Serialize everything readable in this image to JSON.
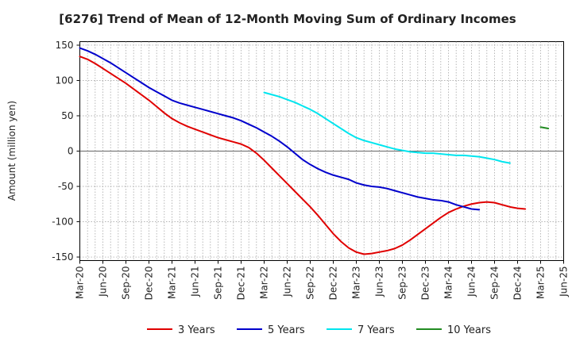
{
  "chart_data": {
    "type": "line",
    "title": "[6276]  Trend of Mean of 12-Month Moving Sum of Ordinary Incomes",
    "xlabel": "",
    "ylabel": "Amount (million yen)",
    "ylim": [
      -155,
      155
    ],
    "yticks": [
      150,
      100,
      50,
      0,
      -50,
      -100,
      -150
    ],
    "xticks": [
      "Mar-20",
      "Jun-20",
      "Sep-20",
      "Dec-20",
      "Mar-21",
      "Jun-21",
      "Sep-21",
      "Dec-21",
      "Mar-22",
      "Jun-22",
      "Sep-22",
      "Dec-22",
      "Mar-23",
      "Jun-23",
      "Sep-23",
      "Dec-23",
      "Mar-24",
      "Jun-24",
      "Sep-24",
      "Dec-24",
      "Mar-25",
      "Jun-25"
    ],
    "grid": "dotted",
    "legend_position": "bottom",
    "series": [
      {
        "name": "3 Years",
        "color": "#e00000",
        "start_index": 0,
        "values": [
          134,
          130,
          124,
          117,
          110,
          103,
          96,
          88,
          80,
          72,
          63,
          54,
          46,
          40,
          35,
          31,
          27,
          23,
          19,
          16,
          13,
          10,
          5,
          -3,
          -13,
          -24,
          -35,
          -46,
          -57,
          -68,
          -79,
          -91,
          -104,
          -117,
          -128,
          -137,
          -143,
          -146,
          -145,
          -143,
          -141,
          -138,
          -133,
          -126,
          -118,
          -110,
          -102,
          -94,
          -87,
          -82,
          -78,
          -75,
          -73,
          -72,
          -73,
          -76,
          -79,
          -81,
          -82
        ]
      },
      {
        "name": "5 Years",
        "color": "#0000cc",
        "start_index": 0,
        "values": [
          146,
          142,
          137,
          131,
          125,
          118,
          111,
          104,
          97,
          90,
          84,
          78,
          72,
          68,
          65,
          62,
          59,
          56,
          53,
          50,
          47,
          43,
          38,
          33,
          27,
          21,
          14,
          6,
          -3,
          -12,
          -19,
          -25,
          -30,
          -34,
          -37,
          -40,
          -45,
          -48,
          -50,
          -51,
          -53,
          -56,
          -59,
          -62,
          -65,
          -67,
          -69,
          -70,
          -72,
          -76,
          -79,
          -82,
          -83
        ]
      },
      {
        "name": "7 Years",
        "color": "#00e5ee",
        "start_index": 24,
        "values": [
          83,
          80,
          77,
          73,
          69,
          64,
          59,
          53,
          46,
          39,
          32,
          25,
          19,
          15,
          12,
          9,
          6,
          3,
          1,
          -1,
          -2,
          -3,
          -3,
          -4,
          -5,
          -6,
          -6,
          -7,
          -8,
          -10,
          -12,
          -15,
          -17
        ]
      },
      {
        "name": "10 Years",
        "color": "#228b22",
        "start_index": 60,
        "values": [
          34,
          32
        ]
      }
    ]
  }
}
